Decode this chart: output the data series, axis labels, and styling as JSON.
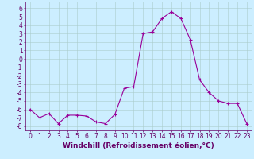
{
  "x": [
    0,
    1,
    2,
    3,
    4,
    5,
    6,
    7,
    8,
    9,
    10,
    11,
    12,
    13,
    14,
    15,
    16,
    17,
    18,
    19,
    20,
    21,
    22,
    23
  ],
  "y": [
    -6.0,
    -7.0,
    -6.5,
    -7.7,
    -6.7,
    -6.7,
    -6.8,
    -7.5,
    -7.7,
    -6.6,
    -3.5,
    -3.3,
    3.0,
    3.2,
    4.8,
    5.6,
    4.8,
    2.3,
    -2.5,
    -4.0,
    -5.0,
    -5.3,
    -5.3,
    -7.7
  ],
  "line_color": "#990099",
  "marker": "+",
  "bg_color": "#cceeff",
  "grid_color": "#aacccc",
  "xlabel": "Windchill (Refroidissement éolien,°C)",
  "xlim": [
    -0.5,
    23.5
  ],
  "ylim": [
    -8.5,
    6.8
  ],
  "yticks": [
    -8,
    -7,
    -6,
    -5,
    -4,
    -3,
    -2,
    -1,
    0,
    1,
    2,
    3,
    4,
    5,
    6
  ],
  "xticks": [
    0,
    1,
    2,
    3,
    4,
    5,
    6,
    7,
    8,
    9,
    10,
    11,
    12,
    13,
    14,
    15,
    16,
    17,
    18,
    19,
    20,
    21,
    22,
    23
  ],
  "label_color": "#660066",
  "font_size": 5.5,
  "xlabel_fontsize": 6.5
}
